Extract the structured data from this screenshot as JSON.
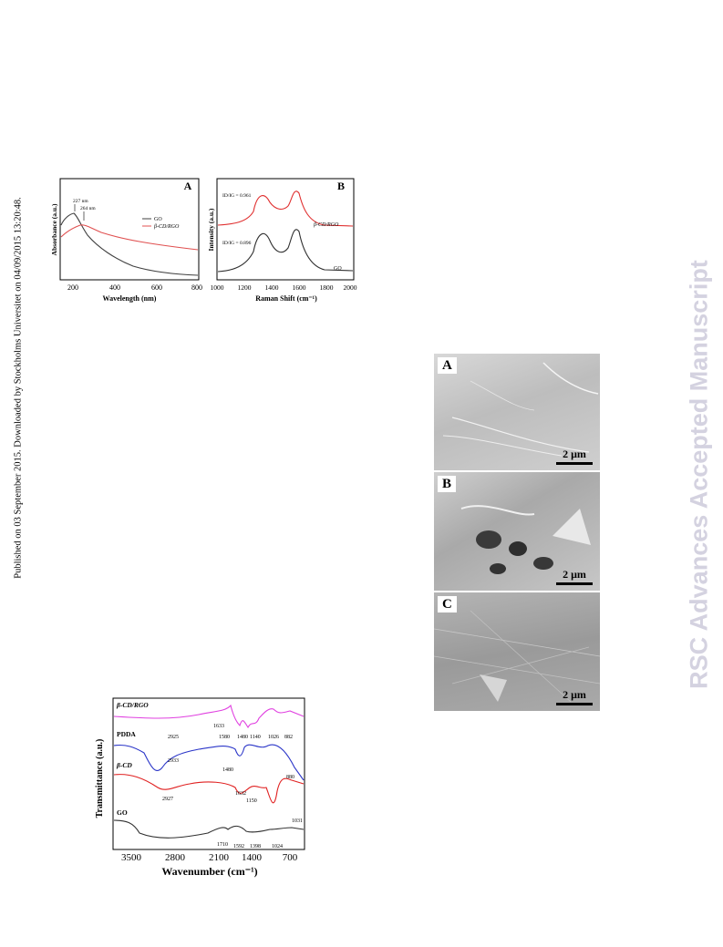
{
  "sidebar_left": "Published on 03 September 2015. Downloaded by Stockholms Universitet on 04/09/2015 13:20:48.",
  "sidebar_right": "RSC Advances Accepted Manuscript",
  "figure_uv_raman": {
    "panel_a": {
      "label": "A",
      "ylabel": "Absorbance (a.u.)",
      "xlabel": "Wavelength (nm)",
      "xticks": [
        "200",
        "400",
        "600",
        "800"
      ],
      "annotation_1": "227 nm",
      "annotation_2": "264 nm",
      "legend": [
        "GO",
        "β-CD/RGO"
      ]
    },
    "panel_b": {
      "label": "B",
      "ylabel": "Intensity (a.u.)",
      "xlabel": "Raman Shift (cm⁻¹)",
      "xticks": [
        "1000",
        "1200",
        "1400",
        "1600",
        "1800",
        "2000"
      ],
      "ratio_top": "ID/IG = 0.961",
      "ratio_bottom": "ID/IG = 0.896",
      "series_top": "β-CD/RGO",
      "series_bottom": "GO"
    }
  },
  "figure_sem": {
    "panels": [
      {
        "label": "A",
        "scale": "2 μm"
      },
      {
        "label": "B",
        "scale": "2 μm"
      },
      {
        "label": "C",
        "scale": "2 μm"
      }
    ]
  },
  "figure_ftir": {
    "ylabel": "Transmittance (a.u.)",
    "xlabel": "Wavenumber (cm⁻¹)",
    "xticks": [
      "3500",
      "2800",
      "2100",
      "1400",
      "700"
    ],
    "series": [
      "β-CD/RGO",
      "PDDA",
      "β-CD",
      "GO"
    ],
    "annotations": {
      "b2925": "2925",
      "b1633": "1633",
      "b1580": "1580",
      "b1480": "1480",
      "b1140": "1140",
      "b1026": "1026",
      "b882": "882",
      "p2933": "2933",
      "p1480": "1480",
      "p880": "880",
      "c2927": "2927",
      "c1632": "1632",
      "c1150": "1150",
      "c1031": "1031",
      "g1710": "1710",
      "g1592": "1592",
      "g1398": "1398",
      "g1024": "1024"
    },
    "colors": {
      "rgo": "#e040e0",
      "pdda": "#2a35c8",
      "cd": "#e02020",
      "go": "#303030"
    }
  }
}
